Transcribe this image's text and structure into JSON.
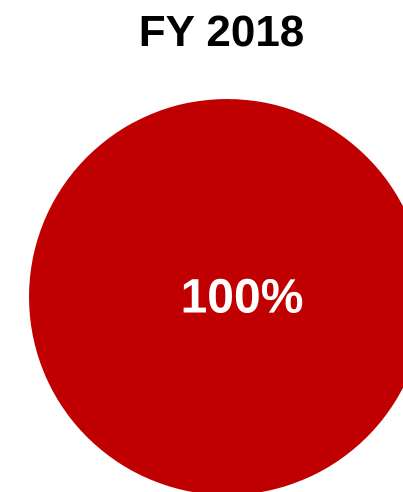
{
  "chart_data": {
    "type": "pie",
    "title": "FY 2018",
    "categories": [
      ""
    ],
    "values": [
      100
    ],
    "data_labels": [
      "100%"
    ],
    "colors": [
      "#c00000"
    ],
    "legend": "none"
  }
}
